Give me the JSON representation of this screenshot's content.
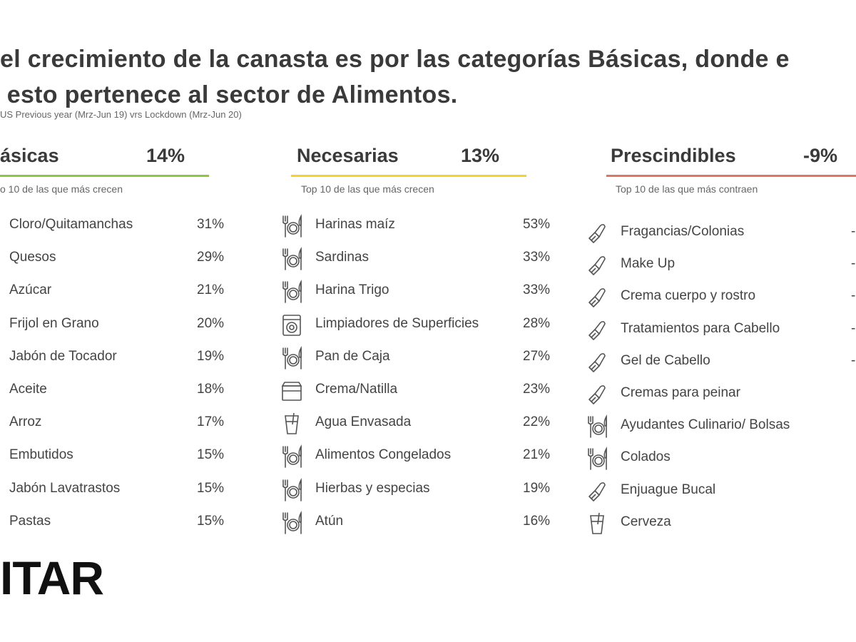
{
  "title": {
    "line1": "el crecimiento de la canasta es por las categorías Básicas, donde e",
    "line2": " esto pertenece al sector de Alimentos."
  },
  "source": "US  Previous  year (Mrz-Jun  19) vrs  Lockdown (Mrz-Jun  20)",
  "colors": {
    "basicas": "#8dc63f",
    "necesarias": "#f5d223",
    "prescindibles": "#e2735f"
  },
  "basicas": {
    "name": "ásicas",
    "pct": "14%",
    "subtitle": "o 10 de las que más crecen",
    "items": [
      {
        "label": "Cloro/Quitamanchas",
        "value": "31%"
      },
      {
        "label": "Quesos",
        "value": "29%"
      },
      {
        "label": "Azúcar",
        "value": "21%"
      },
      {
        "label": "Frijol en Grano",
        "value": "20%"
      },
      {
        "label": "Jabón de Tocador",
        "value": "19%"
      },
      {
        "label": "Aceite",
        "value": "18%"
      },
      {
        "label": "Arroz",
        "value": "17%"
      },
      {
        "label": "Embutidos",
        "value": "15%"
      },
      {
        "label": "Jabón Lavatrastos",
        "value": "15%"
      },
      {
        "label": "Pastas",
        "value": "15%"
      }
    ]
  },
  "necesarias": {
    "name": "Necesarias",
    "pct": "13%",
    "subtitle": "Top 10 de las que más crecen",
    "items": [
      {
        "label": "Harinas maíz",
        "value": "53%",
        "icon": "fork-knife-plate-icon"
      },
      {
        "label": "Sardinas",
        "value": "33%",
        "icon": "fork-knife-plate-icon"
      },
      {
        "label": "Harina Trigo",
        "value": "33%",
        "icon": "fork-knife-plate-icon"
      },
      {
        "label": "Limpiadores de Superficies",
        "value": "28%",
        "icon": "washing-machine-icon"
      },
      {
        "label": "Pan de Caja",
        "value": "27%",
        "icon": "fork-knife-plate-icon"
      },
      {
        "label": "Crema/Natilla",
        "value": "23%",
        "icon": "dairy-icon"
      },
      {
        "label": "Agua Envasada",
        "value": "22%",
        "icon": "glass-icon"
      },
      {
        "label": "Alimentos Congelados",
        "value": "21%",
        "icon": "fork-knife-plate-icon"
      },
      {
        "label": "Hierbas y especias",
        "value": "19%",
        "icon": "fork-knife-plate-icon"
      },
      {
        "label": "Atún",
        "value": "16%",
        "icon": "fork-knife-plate-icon"
      }
    ]
  },
  "prescindibles": {
    "name": "Prescindibles",
    "pct": "-9%",
    "subtitle": "Top 10 de las que más contraen",
    "items": [
      {
        "label": "Fragancias/Colonias",
        "value": "-",
        "icon": "lipstick-icon"
      },
      {
        "label": "Make Up",
        "value": "-",
        "icon": "lipstick-icon"
      },
      {
        "label": "Crema cuerpo y rostro",
        "value": "-",
        "icon": "lipstick-icon"
      },
      {
        "label": "Tratamientos para Cabello",
        "value": "-",
        "icon": "lipstick-icon"
      },
      {
        "label": "Gel de Cabello",
        "value": "-",
        "icon": "lipstick-icon"
      },
      {
        "label": "Cremas para peinar",
        "value": "",
        "icon": "lipstick-icon"
      },
      {
        "label": "Ayudantes Culinario/ Bolsas",
        "value": "",
        "icon": "fork-knife-plate-icon"
      },
      {
        "label": "Colados",
        "value": "",
        "icon": "fork-knife-plate-icon"
      },
      {
        "label": "Enjuague Bucal",
        "value": "",
        "icon": "lipstick-icon"
      },
      {
        "label": "Cerveza",
        "value": "",
        "icon": "glass-icon"
      }
    ]
  },
  "logo": "ITAR"
}
